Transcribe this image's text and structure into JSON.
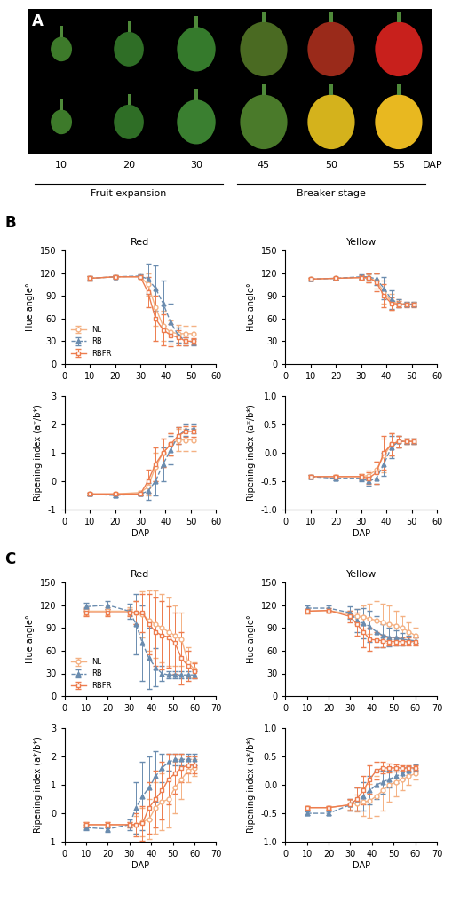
{
  "panel_a": {
    "label": "A",
    "dap": [
      10,
      20,
      30,
      45,
      50,
      55
    ],
    "axis_label": "DAP",
    "stages": [
      {
        "label": "Fruit expansion",
        "from": 10,
        "to": 30
      },
      {
        "label": "Breaker stage",
        "from": 45,
        "to": 55
      }
    ]
  },
  "panel_labels": [
    "B",
    "C"
  ],
  "chart_data": [
    {
      "type": "line",
      "title": "Red",
      "y_label": "Hue angle°",
      "legend": "lower left",
      "xlim": [
        0,
        60
      ],
      "xticks": [
        0,
        10,
        20,
        30,
        40,
        50,
        60
      ],
      "ylim": [
        0,
        150
      ],
      "yticks": [
        0,
        30,
        60,
        90,
        120,
        150
      ],
      "x": [
        10,
        20,
        30,
        33,
        36,
        39,
        42,
        45,
        48,
        51
      ],
      "series": [
        {
          "name": "NL",
          "color": "#f4b183",
          "marker": "o",
          "line_style": "solid",
          "values": [
            113,
            115,
            115,
            105,
            75,
            50,
            42,
            40,
            40,
            40
          ],
          "errors": [
            3,
            2,
            3,
            15,
            25,
            20,
            15,
            12,
            10,
            10
          ]
        },
        {
          "name": "RB",
          "color": "#6a8caf",
          "marker": "^",
          "line_style": "dashed",
          "values": [
            113,
            115,
            116,
            112,
            100,
            80,
            55,
            38,
            30,
            29
          ],
          "errors": [
            3,
            2,
            2,
            20,
            30,
            30,
            25,
            10,
            5,
            4
          ]
        },
        {
          "name": "RBFR",
          "color": "#ed7d4f",
          "marker": "s",
          "line_style": "solid",
          "values": [
            113,
            115,
            115,
            95,
            60,
            45,
            38,
            35,
            30,
            30
          ],
          "errors": [
            3,
            2,
            2,
            20,
            30,
            20,
            15,
            10,
            5,
            4
          ]
        }
      ]
    },
    {
      "type": "line",
      "title": "Yellow",
      "y_label": "Hue angle°",
      "xlim": [
        0,
        60
      ],
      "xticks": [
        0,
        10,
        20,
        30,
        40,
        50,
        60
      ],
      "ylim": [
        0,
        150
      ],
      "yticks": [
        0,
        30,
        60,
        90,
        120,
        150
      ],
      "x": [
        10,
        20,
        30,
        33,
        36,
        39,
        42,
        45,
        48,
        51
      ],
      "series": [
        {
          "name": "NL",
          "color": "#f4b183",
          "marker": "o",
          "line_style": "solid",
          "values": [
            112,
            113,
            114,
            113,
            110,
            95,
            82,
            80,
            79,
            79
          ],
          "errors": [
            2,
            2,
            3,
            5,
            10,
            15,
            10,
            5,
            3,
            3
          ]
        },
        {
          "name": "RB",
          "color": "#6a8caf",
          "marker": "^",
          "line_style": "dashed",
          "values": [
            112,
            113,
            115,
            115,
            112,
            100,
            85,
            80,
            79,
            79
          ],
          "errors": [
            2,
            2,
            3,
            5,
            8,
            15,
            12,
            5,
            3,
            3
          ]
        },
        {
          "name": "RBFR",
          "color": "#ed7d4f",
          "marker": "s",
          "line_style": "solid",
          "values": [
            112,
            113,
            114,
            114,
            108,
            90,
            80,
            79,
            78,
            78
          ],
          "errors": [
            2,
            2,
            3,
            6,
            12,
            15,
            8,
            4,
            3,
            3
          ]
        }
      ]
    },
    {
      "type": "line",
      "y_label": "Ripening index (a*/b*)",
      "x_label": "DAP",
      "xlim": [
        0,
        60
      ],
      "xticks": [
        0,
        10,
        20,
        30,
        40,
        50,
        60
      ],
      "ylim": [
        -1,
        3
      ],
      "yticks": [
        -1,
        0,
        1,
        2,
        3
      ],
      "x": [
        10,
        20,
        30,
        33,
        36,
        39,
        42,
        45,
        48,
        51
      ],
      "series": [
        {
          "name": "NL",
          "color": "#f4b183",
          "marker": "o",
          "line_style": "solid",
          "values": [
            -0.45,
            -0.45,
            -0.4,
            -0.2,
            0.5,
            1.0,
            1.3,
            1.45,
            1.45,
            1.45
          ],
          "errors": [
            0.05,
            0.05,
            0.05,
            0.3,
            0.5,
            0.5,
            0.4,
            0.4,
            0.4,
            0.4
          ]
        },
        {
          "name": "RB",
          "color": "#6a8caf",
          "marker": "^",
          "line_style": "dashed",
          "values": [
            -0.45,
            -0.5,
            -0.45,
            -0.35,
            0,
            0.6,
            1.1,
            1.6,
            1.8,
            1.85
          ],
          "errors": [
            0.05,
            0.05,
            0.05,
            0.3,
            0.5,
            0.6,
            0.5,
            0.3,
            0.2,
            0.15
          ]
        },
        {
          "name": "RBFR",
          "color": "#ed7d4f",
          "marker": "s",
          "line_style": "solid",
          "values": [
            -0.45,
            -0.45,
            -0.45,
            0,
            0.6,
            1.0,
            1.3,
            1.6,
            1.75,
            1.75
          ],
          "errors": [
            0.05,
            0.05,
            0.05,
            0.4,
            0.6,
            0.5,
            0.4,
            0.3,
            0.2,
            0.2
          ]
        }
      ]
    },
    {
      "type": "line",
      "y_label": "Ripening index (a*/b*)",
      "x_label": "DAP",
      "xlim": [
        0,
        60
      ],
      "xticks": [
        0,
        10,
        20,
        30,
        40,
        50,
        60
      ],
      "ylim": [
        -1,
        1
      ],
      "yticks": [
        {
          "value": -1,
          "label": "-1.0"
        },
        -0.5,
        {
          "value": 0,
          "label": "0.0"
        },
        0.5,
        {
          "value": 1,
          "label": "1.0"
        }
      ],
      "x": [
        10,
        20,
        30,
        33,
        36,
        39,
        42,
        45,
        48,
        51
      ],
      "series": [
        {
          "name": "NL",
          "color": "#f4b183",
          "marker": "o",
          "line_style": "solid",
          "values": [
            -0.42,
            -0.42,
            -0.42,
            -0.4,
            -0.3,
            -0.05,
            0.15,
            0.2,
            0.2,
            0.2
          ],
          "errors": [
            0.03,
            0.03,
            0.05,
            0.08,
            0.15,
            0.3,
            0.2,
            0.1,
            0.05,
            0.05
          ]
        },
        {
          "name": "RB",
          "color": "#6a8caf",
          "marker": "^",
          "line_style": "dashed",
          "values": [
            -0.42,
            -0.45,
            -0.45,
            -0.5,
            -0.45,
            -0.2,
            0.1,
            0.2,
            0.2,
            0.2
          ],
          "errors": [
            0.03,
            0.03,
            0.05,
            0.08,
            0.1,
            0.2,
            0.2,
            0.1,
            0.05,
            0.05
          ]
        },
        {
          "name": "RBFR",
          "color": "#ed7d4f",
          "marker": "s",
          "line_style": "solid",
          "values": [
            -0.42,
            -0.42,
            -0.42,
            -0.45,
            -0.35,
            0,
            0.15,
            0.2,
            0.2,
            0.2
          ],
          "errors": [
            0.03,
            0.03,
            0.05,
            0.1,
            0.2,
            0.3,
            0.2,
            0.1,
            0.05,
            0.05
          ]
        }
      ]
    },
    {
      "type": "line",
      "title": "Red",
      "y_label": "Hue angle°",
      "legend": "lower left",
      "xlim": [
        0,
        70
      ],
      "xticks": [
        0,
        10,
        20,
        30,
        40,
        50,
        60,
        70
      ],
      "ylim": [
        0,
        150
      ],
      "yticks": [
        0,
        30,
        60,
        90,
        120,
        150
      ],
      "x": [
        10,
        20,
        30,
        33,
        36,
        39,
        42,
        45,
        48,
        51,
        54,
        57,
        60
      ],
      "series": [
        {
          "name": "NL",
          "color": "#f4b183",
          "marker": "o",
          "line_style": "solid",
          "values": [
            112,
            112,
            112,
            110,
            108,
            100,
            95,
            90,
            85,
            80,
            75,
            45,
            35
          ],
          "errors": [
            5,
            5,
            5,
            15,
            30,
            40,
            45,
            45,
            45,
            40,
            35,
            20,
            10
          ]
        },
        {
          "name": "RB",
          "color": "#6a8caf",
          "marker": "^",
          "line_style": "dashed",
          "values": [
            118,
            120,
            112,
            95,
            70,
            50,
            38,
            30,
            28,
            28,
            28,
            28,
            28
          ],
          "errors": [
            5,
            5,
            10,
            40,
            50,
            40,
            25,
            10,
            5,
            5,
            5,
            5,
            5
          ]
        },
        {
          "name": "RBFR",
          "color": "#ed7d4f",
          "marker": "s",
          "line_style": "solid",
          "values": [
            110,
            110,
            110,
            110,
            110,
            95,
            85,
            80,
            78,
            70,
            50,
            40,
            33
          ],
          "errors": [
            5,
            5,
            5,
            15,
            25,
            40,
            45,
            45,
            40,
            40,
            35,
            20,
            10
          ]
        }
      ]
    },
    {
      "type": "line",
      "title": "Yellow",
      "y_label": "Hue angle°",
      "xlim": [
        0,
        70
      ],
      "xticks": [
        0,
        10,
        20,
        30,
        40,
        50,
        60,
        70
      ],
      "ylim": [
        0,
        150
      ],
      "yticks": [
        0,
        30,
        60,
        90,
        120,
        150
      ],
      "x": [
        10,
        20,
        30,
        33,
        36,
        39,
        42,
        45,
        48,
        51,
        54,
        57,
        60
      ],
      "series": [
        {
          "name": "NL",
          "color": "#f4b183",
          "marker": "o",
          "line_style": "solid",
          "values": [
            112,
            113,
            108,
            105,
            104,
            102,
            100,
            97,
            95,
            93,
            90,
            85,
            80
          ],
          "errors": [
            3,
            3,
            5,
            10,
            15,
            20,
            25,
            25,
            25,
            20,
            15,
            12,
            10
          ]
        },
        {
          "name": "RB",
          "color": "#6a8caf",
          "marker": "^",
          "line_style": "dashed",
          "values": [
            116,
            116,
            110,
            100,
            96,
            92,
            85,
            80,
            78,
            77,
            75,
            74,
            73
          ],
          "errors": [
            3,
            3,
            8,
            15,
            20,
            20,
            20,
            15,
            12,
            10,
            8,
            6,
            5
          ]
        },
        {
          "name": "RBFR",
          "color": "#ed7d4f",
          "marker": "s",
          "line_style": "solid",
          "values": [
            112,
            113,
            105,
            95,
            85,
            75,
            74,
            73,
            72,
            72,
            72,
            72,
            72
          ],
          "errors": [
            3,
            3,
            8,
            15,
            20,
            15,
            10,
            8,
            5,
            5,
            5,
            5,
            5
          ]
        }
      ]
    },
    {
      "type": "line",
      "y_label": "Ripening index (a*/b*)",
      "x_label": "DAP",
      "xlim": [
        0,
        70
      ],
      "xticks": [
        0,
        10,
        20,
        30,
        40,
        50,
        60,
        70
      ],
      "ylim": [
        -1,
        3
      ],
      "yticks": [
        -1,
        0,
        1,
        2,
        3
      ],
      "x": [
        10,
        20,
        30,
        33,
        36,
        39,
        42,
        45,
        48,
        51,
        54,
        57,
        60
      ],
      "series": [
        {
          "name": "NL",
          "color": "#f4b183",
          "marker": "o",
          "line_style": "solid",
          "values": [
            -0.4,
            -0.4,
            -0.4,
            -0.4,
            -0.3,
            -0.2,
            0.2,
            0.4,
            0.5,
            0.9,
            1.2,
            1.5,
            1.6
          ],
          "errors": [
            0.1,
            0.1,
            0.1,
            0.3,
            0.5,
            0.7,
            0.9,
            1.0,
            1.0,
            0.9,
            0.7,
            0.4,
            0.3
          ]
        },
        {
          "name": "RB",
          "color": "#6a8caf",
          "marker": "^",
          "line_style": "dashed",
          "values": [
            -0.5,
            -0.55,
            -0.4,
            0.2,
            0.6,
            0.9,
            1.3,
            1.6,
            1.8,
            1.9,
            1.9,
            1.9,
            1.9
          ],
          "errors": [
            0.1,
            0.1,
            0.2,
            0.9,
            1.2,
            1.1,
            0.9,
            0.5,
            0.3,
            0.2,
            0.2,
            0.2,
            0.2
          ]
        },
        {
          "name": "RBFR",
          "color": "#ed7d4f",
          "marker": "s",
          "line_style": "solid",
          "values": [
            -0.4,
            -0.4,
            -0.4,
            -0.4,
            -0.35,
            0.2,
            0.5,
            0.8,
            1.2,
            1.4,
            1.6,
            1.7,
            1.7
          ],
          "errors": [
            0.1,
            0.1,
            0.1,
            0.4,
            0.6,
            0.9,
            1.0,
            1.0,
            0.9,
            0.7,
            0.5,
            0.3,
            0.3
          ]
        }
      ]
    },
    {
      "type": "line",
      "y_label": "Ripening index (a*/b*)",
      "x_label": "DAP",
      "xlim": [
        0,
        70
      ],
      "xticks": [
        0,
        10,
        20,
        30,
        40,
        50,
        60,
        70
      ],
      "ylim": [
        -1,
        1
      ],
      "yticks": [
        {
          "value": -1,
          "label": "-1.0"
        },
        -0.5,
        {
          "value": 0,
          "label": "0.0"
        },
        0.5,
        {
          "value": 1,
          "label": "1.0"
        }
      ],
      "x": [
        10,
        20,
        30,
        33,
        36,
        39,
        42,
        45,
        48,
        51,
        54,
        57,
        60
      ],
      "series": [
        {
          "name": "NL",
          "color": "#f4b183",
          "marker": "o",
          "line_style": "solid",
          "values": [
            -0.4,
            -0.4,
            -0.35,
            -0.32,
            -0.3,
            -0.28,
            -0.2,
            -0.1,
            0,
            0.05,
            0.1,
            0.15,
            0.2
          ],
          "errors": [
            0.03,
            0.03,
            0.08,
            0.15,
            0.25,
            0.3,
            0.35,
            0.35,
            0.3,
            0.25,
            0.2,
            0.15,
            0.1
          ]
        },
        {
          "name": "RB",
          "color": "#6a8caf",
          "marker": "^",
          "line_style": "dashed",
          "values": [
            -0.5,
            -0.5,
            -0.35,
            -0.25,
            -0.2,
            -0.1,
            0,
            0.05,
            0.1,
            0.15,
            0.2,
            0.25,
            0.3
          ],
          "errors": [
            0.03,
            0.03,
            0.1,
            0.2,
            0.25,
            0.25,
            0.25,
            0.2,
            0.15,
            0.12,
            0.1,
            0.08,
            0.06
          ]
        },
        {
          "name": "RBFR",
          "color": "#ed7d4f",
          "marker": "s",
          "line_style": "solid",
          "values": [
            -0.4,
            -0.4,
            -0.35,
            -0.25,
            -0.1,
            0.1,
            0.25,
            0.3,
            0.3,
            0.3,
            0.3,
            0.3,
            0.3
          ],
          "errors": [
            0.03,
            0.03,
            0.1,
            0.2,
            0.25,
            0.25,
            0.15,
            0.1,
            0.08,
            0.06,
            0.05,
            0.05,
            0.05
          ]
        }
      ]
    }
  ]
}
